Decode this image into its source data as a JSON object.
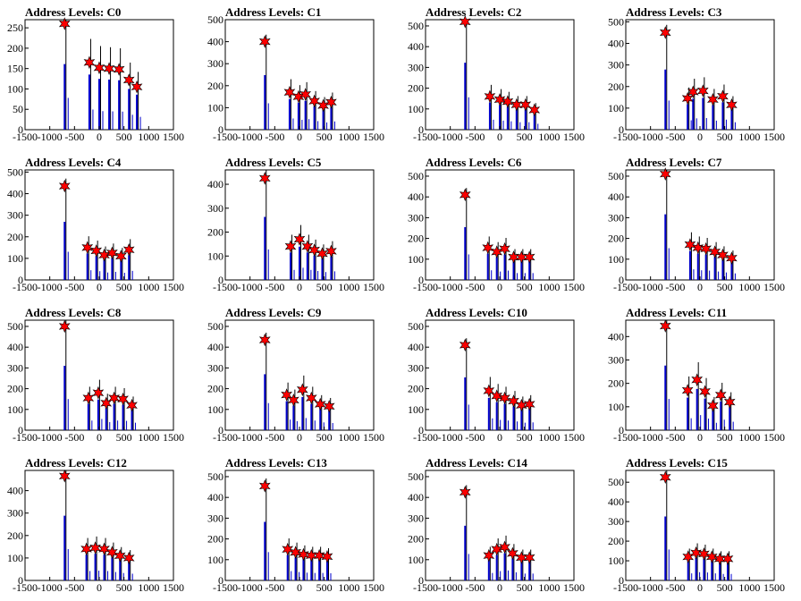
{
  "chart_data": [
    {
      "type": "bar",
      "title": "Address Levels: C0",
      "xlim": [
        -1500,
        1500
      ],
      "ylim": [
        0,
        270
      ],
      "yticks": [
        0,
        50,
        100,
        150,
        200,
        250
      ],
      "xticks": [
        -1500,
        -1000,
        -500,
        0,
        500,
        1000,
        1500
      ],
      "xticklabels": [
        "-1500",
        "-1000",
        "-500",
        "0",
        "500",
        "1000",
        "1500"
      ],
      "peaks": [
        {
          "x": -700,
          "y": 260
        },
        {
          "x": -200,
          "y": 165
        },
        {
          "x": 0,
          "y": 152
        },
        {
          "x": 200,
          "y": 150
        },
        {
          "x": 400,
          "y": 148
        },
        {
          "x": 600,
          "y": 122
        },
        {
          "x": 760,
          "y": 105
        }
      ]
    },
    {
      "type": "bar",
      "title": "Address Levels: C1",
      "xlim": [
        -1500,
        1500
      ],
      "ylim": [
        0,
        500
      ],
      "yticks": [
        0,
        100,
        200,
        300,
        400,
        500
      ],
      "xticks": [
        -1500,
        -1000,
        -500,
        0,
        500,
        1000,
        1500
      ],
      "xticklabels": [
        "-1500",
        "-1000",
        "-500",
        "0",
        "500",
        "1000",
        "1500"
      ],
      "peaks": [
        {
          "x": -700,
          "y": 400
        },
        {
          "x": -200,
          "y": 170
        },
        {
          "x": -20,
          "y": 150
        },
        {
          "x": 120,
          "y": 160
        },
        {
          "x": 300,
          "y": 130
        },
        {
          "x": 480,
          "y": 110
        },
        {
          "x": 640,
          "y": 125
        }
      ]
    },
    {
      "type": "bar",
      "title": "Address Levels: C2",
      "xlim": [
        -1500,
        1500
      ],
      "ylim": [
        0,
        530
      ],
      "yticks": [
        0,
        100,
        200,
        300,
        400,
        500
      ],
      "xticks": [
        -1500,
        -1000,
        -500,
        0,
        500,
        1000,
        1500
      ],
      "xticklabels": [
        "-1500",
        "-1000",
        "-500",
        "0",
        "500",
        "1000",
        "1500"
      ],
      "peaks": [
        {
          "x": -700,
          "y": 520
        },
        {
          "x": -200,
          "y": 160
        },
        {
          "x": 0,
          "y": 145
        },
        {
          "x": 160,
          "y": 135
        },
        {
          "x": 340,
          "y": 120
        },
        {
          "x": 520,
          "y": 120
        },
        {
          "x": 700,
          "y": 95
        }
      ]
    },
    {
      "type": "bar",
      "title": "Address Levels: C3",
      "xlim": [
        -1500,
        1500
      ],
      "ylim": [
        0,
        510
      ],
      "yticks": [
        0,
        100,
        200,
        300,
        400,
        500
      ],
      "xticks": [
        -1500,
        -1000,
        -500,
        0,
        500,
        1000,
        1500
      ],
      "xticklabels": [
        "-1500",
        "-1000",
        "-500",
        "0",
        "500",
        "1000",
        "1500"
      ],
      "peaks": [
        {
          "x": -700,
          "y": 450
        },
        {
          "x": -250,
          "y": 145
        },
        {
          "x": -140,
          "y": 175
        },
        {
          "x": 60,
          "y": 180
        },
        {
          "x": 260,
          "y": 140
        },
        {
          "x": 460,
          "y": 155
        },
        {
          "x": 640,
          "y": 115
        }
      ]
    },
    {
      "type": "bar",
      "title": "Address Levels: C4",
      "xlim": [
        -1500,
        1500
      ],
      "ylim": [
        0,
        510
      ],
      "yticks": [
        0,
        100,
        200,
        300,
        400,
        500
      ],
      "xticks": [
        -1500,
        -1000,
        -500,
        0,
        500,
        1000,
        1500
      ],
      "xticklabels": [
        "-1500",
        "-1000",
        "-500",
        "0",
        "500",
        "1000",
        "1500"
      ],
      "peaks": [
        {
          "x": -700,
          "y": 435
        },
        {
          "x": -240,
          "y": 150
        },
        {
          "x": -60,
          "y": 135
        },
        {
          "x": 100,
          "y": 115
        },
        {
          "x": 260,
          "y": 125
        },
        {
          "x": 440,
          "y": 110
        },
        {
          "x": 600,
          "y": 140
        }
      ]
    },
    {
      "type": "bar",
      "title": "Address Levels: C5",
      "xlim": [
        -1500,
        1500
      ],
      "ylim": [
        0,
        460
      ],
      "yticks": [
        0,
        100,
        200,
        300,
        400
      ],
      "xticks": [
        -1500,
        -1000,
        -500,
        0,
        500,
        1000,
        1500
      ],
      "xticklabels": [
        "-1500",
        "-1000",
        "-500",
        "0",
        "500",
        "1000",
        "1500"
      ],
      "peaks": [
        {
          "x": -700,
          "y": 425
        },
        {
          "x": -180,
          "y": 140
        },
        {
          "x": 0,
          "y": 170
        },
        {
          "x": 160,
          "y": 140
        },
        {
          "x": 300,
          "y": 125
        },
        {
          "x": 460,
          "y": 110
        },
        {
          "x": 640,
          "y": 120
        }
      ]
    },
    {
      "type": "bar",
      "title": "Address Levels: C6",
      "xlim": [
        -1500,
        1500
      ],
      "ylim": [
        0,
        530
      ],
      "yticks": [
        0,
        100,
        200,
        300,
        400,
        500
      ],
      "xticks": [
        -1500,
        -1000,
        -500,
        0,
        500,
        1000,
        1500
      ],
      "xticklabels": [
        "-1500",
        "-1000",
        "-500",
        "0",
        "500",
        "1000",
        "1500"
      ],
      "peaks": [
        {
          "x": -700,
          "y": 410
        },
        {
          "x": -240,
          "y": 155
        },
        {
          "x": -60,
          "y": 135
        },
        {
          "x": 100,
          "y": 150
        },
        {
          "x": 280,
          "y": 110
        },
        {
          "x": 440,
          "y": 110
        },
        {
          "x": 600,
          "y": 110
        }
      ]
    },
    {
      "type": "bar",
      "title": "Address Levels: C7",
      "xlim": [
        -1500,
        1500
      ],
      "ylim": [
        0,
        530
      ],
      "yticks": [
        0,
        100,
        200,
        300,
        400,
        500
      ],
      "xticks": [
        -1500,
        -1000,
        -500,
        0,
        500,
        1000,
        1500
      ],
      "xticklabels": [
        "-1500",
        "-1000",
        "-500",
        "0",
        "500",
        "1000",
        "1500"
      ],
      "peaks": [
        {
          "x": -700,
          "y": 510
        },
        {
          "x": -200,
          "y": 170
        },
        {
          "x": -40,
          "y": 155
        },
        {
          "x": 120,
          "y": 150
        },
        {
          "x": 300,
          "y": 135
        },
        {
          "x": 460,
          "y": 120
        },
        {
          "x": 640,
          "y": 105
        }
      ]
    },
    {
      "type": "bar",
      "title": "Address Levels: C8",
      "xlim": [
        -1500,
        1500
      ],
      "ylim": [
        0,
        530
      ],
      "yticks": [
        0,
        100,
        200,
        300,
        400,
        500
      ],
      "xticks": [
        -1500,
        -1000,
        -500,
        0,
        500,
        1000,
        1500
      ],
      "xticklabels": [
        "-1500",
        "-1000",
        "-500",
        "0",
        "500",
        "1000",
        "1500"
      ],
      "peaks": [
        {
          "x": -700,
          "y": 500
        },
        {
          "x": -220,
          "y": 155
        },
        {
          "x": -20,
          "y": 180
        },
        {
          "x": 140,
          "y": 130
        },
        {
          "x": 300,
          "y": 155
        },
        {
          "x": 480,
          "y": 150
        },
        {
          "x": 660,
          "y": 120
        }
      ]
    },
    {
      "type": "bar",
      "title": "Address Levels: C9",
      "xlim": [
        -1500,
        1500
      ],
      "ylim": [
        0,
        530
      ],
      "yticks": [
        0,
        100,
        200,
        300,
        400,
        500
      ],
      "xticks": [
        -1500,
        -1000,
        -500,
        0,
        500,
        1000,
        1500
      ],
      "xticklabels": [
        "-1500",
        "-1000",
        "-500",
        "0",
        "500",
        "1000",
        "1500"
      ],
      "peaks": [
        {
          "x": -700,
          "y": 435
        },
        {
          "x": -260,
          "y": 170
        },
        {
          "x": -120,
          "y": 145
        },
        {
          "x": 60,
          "y": 195
        },
        {
          "x": 240,
          "y": 155
        },
        {
          "x": 420,
          "y": 125
        },
        {
          "x": 600,
          "y": 115
        }
      ]
    },
    {
      "type": "bar",
      "title": "Address Levels: C10",
      "xlim": [
        -1500,
        1500
      ],
      "ylim": [
        0,
        530
      ],
      "yticks": [
        0,
        100,
        200,
        300,
        400,
        500
      ],
      "xticks": [
        -1500,
        -1000,
        -500,
        0,
        500,
        1000,
        1500
      ],
      "xticklabels": [
        "-1500",
        "-1000",
        "-500",
        "0",
        "500",
        "1000",
        "1500"
      ],
      "peaks": [
        {
          "x": -700,
          "y": 410
        },
        {
          "x": -220,
          "y": 190
        },
        {
          "x": -60,
          "y": 165
        },
        {
          "x": 100,
          "y": 155
        },
        {
          "x": 280,
          "y": 140
        },
        {
          "x": 440,
          "y": 120
        },
        {
          "x": 600,
          "y": 125
        }
      ]
    },
    {
      "type": "bar",
      "title": "Address Levels: C11",
      "xlim": [
        -1500,
        1500
      ],
      "ylim": [
        0,
        470
      ],
      "yticks": [
        0,
        100,
        200,
        300,
        400
      ],
      "xticks": [
        -1500,
        -1000,
        -500,
        0,
        500,
        1000,
        1500
      ],
      "xticklabels": [
        "-1500",
        "-1000",
        "-500",
        "0",
        "500",
        "1000",
        "1500"
      ],
      "peaks": [
        {
          "x": -700,
          "y": 445
        },
        {
          "x": -250,
          "y": 170
        },
        {
          "x": -60,
          "y": 215
        },
        {
          "x": 100,
          "y": 165
        },
        {
          "x": 260,
          "y": 105
        },
        {
          "x": 420,
          "y": 150
        },
        {
          "x": 600,
          "y": 120
        }
      ]
    },
    {
      "type": "bar",
      "title": "Address Levels: C12",
      "xlim": [
        -1500,
        1500
      ],
      "ylim": [
        0,
        490
      ],
      "yticks": [
        0,
        100,
        200,
        300,
        400
      ],
      "xticks": [
        -1500,
        -1000,
        -500,
        0,
        500,
        1000,
        1500
      ],
      "xticklabels": [
        "-1500",
        "-1000",
        "-500",
        "0",
        "500",
        "1000",
        "1500"
      ],
      "peaks": [
        {
          "x": -700,
          "y": 465
        },
        {
          "x": -260,
          "y": 140
        },
        {
          "x": -80,
          "y": 145
        },
        {
          "x": 100,
          "y": 140
        },
        {
          "x": 260,
          "y": 125
        },
        {
          "x": 420,
          "y": 110
        },
        {
          "x": 600,
          "y": 100
        }
      ]
    },
    {
      "type": "bar",
      "title": "Address Levels: C13",
      "xlim": [
        -1500,
        1500
      ],
      "ylim": [
        0,
        530
      ],
      "yticks": [
        0,
        100,
        200,
        300,
        400,
        500
      ],
      "xticks": [
        -1500,
        -1000,
        -500,
        0,
        500,
        1000,
        1500
      ],
      "xticklabels": [
        "-1500",
        "-1000",
        "-500",
        "0",
        "500",
        "1000",
        "1500"
      ],
      "peaks": [
        {
          "x": -700,
          "y": 455
        },
        {
          "x": -240,
          "y": 150
        },
        {
          "x": -80,
          "y": 135
        },
        {
          "x": 80,
          "y": 125
        },
        {
          "x": 240,
          "y": 120
        },
        {
          "x": 400,
          "y": 120
        },
        {
          "x": 560,
          "y": 115
        }
      ]
    },
    {
      "type": "bar",
      "title": "Address Levels: C14",
      "xlim": [
        -1500,
        1500
      ],
      "ylim": [
        0,
        530
      ],
      "yticks": [
        0,
        100,
        200,
        300,
        400,
        500
      ],
      "xticks": [
        -1500,
        -1000,
        -500,
        0,
        500,
        1000,
        1500
      ],
      "xticklabels": [
        "-1500",
        "-1000",
        "-500",
        "0",
        "500",
        "1000",
        "1500"
      ],
      "peaks": [
        {
          "x": -700,
          "y": 425
        },
        {
          "x": -220,
          "y": 120
        },
        {
          "x": -60,
          "y": 150
        },
        {
          "x": 100,
          "y": 160
        },
        {
          "x": 260,
          "y": 130
        },
        {
          "x": 440,
          "y": 110
        },
        {
          "x": 600,
          "y": 110
        }
      ]
    },
    {
      "type": "bar",
      "title": "Address Levels: C15",
      "xlim": [
        -1500,
        1500
      ],
      "ylim": [
        0,
        560
      ],
      "yticks": [
        0,
        100,
        200,
        300,
        400,
        500
      ],
      "xticks": [
        -1500,
        -1000,
        -500,
        0,
        500,
        1000,
        1500
      ],
      "xticklabels": [
        "-1500",
        "-1000",
        "-500",
        "0",
        "500",
        "1000",
        "1500"
      ],
      "peaks": [
        {
          "x": -700,
          "y": 525
        },
        {
          "x": -240,
          "y": 120
        },
        {
          "x": -80,
          "y": 140
        },
        {
          "x": 80,
          "y": 135
        },
        {
          "x": 240,
          "y": 120
        },
        {
          "x": 400,
          "y": 110
        },
        {
          "x": 560,
          "y": 110
        }
      ]
    }
  ]
}
